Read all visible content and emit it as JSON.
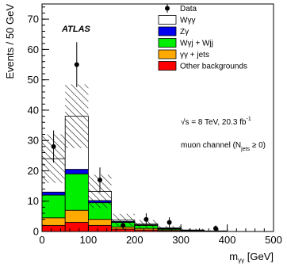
{
  "chart_data": {
    "type": "bar",
    "stacked": true,
    "x_edges": [
      0,
      50,
      100,
      150,
      200,
      250,
      300,
      350,
      400,
      450,
      500
    ],
    "xlim": [
      0,
      500
    ],
    "ylim": [
      0,
      75
    ],
    "xlabel_main": "m",
    "xlabel_sub": "γγ",
    "xlabel_unit": " [GeV]",
    "ylabel": "Events / 50 GeV",
    "x_ticks": [
      0,
      100,
      200,
      300,
      400,
      500
    ],
    "y_ticks": [
      0,
      10,
      20,
      30,
      40,
      50,
      60,
      70
    ],
    "series": [
      {
        "key": "other",
        "name": "Other backgrounds",
        "color": "#ff0000",
        "values": [
          2.0,
          3.0,
          2.0,
          0.8,
          0.5,
          0.3,
          0.1,
          0.1,
          0.0,
          0.0
        ]
      },
      {
        "key": "gg",
        "name": "γγ + jets",
        "color": "#ffaa00",
        "values": [
          2.5,
          4.0,
          2.0,
          0.7,
          0.5,
          0.3,
          0.1,
          0.0,
          0.0,
          0.0
        ]
      },
      {
        "key": "wgj",
        "name": "Wγj + Wjj",
        "color": "#00ee00",
        "values": [
          7.5,
          12.0,
          5.5,
          1.5,
          1.0,
          0.3,
          0.2,
          0.1,
          0.0,
          0.0
        ]
      },
      {
        "key": "zg",
        "name": "Zγ",
        "color": "#0000ee",
        "values": [
          1.0,
          1.5,
          0.7,
          0.3,
          0.2,
          0.1,
          0.0,
          0.0,
          0.0,
          0.0
        ]
      },
      {
        "key": "wgg",
        "name": "Wγγ",
        "color": "#ffffff",
        "values": [
          11.0,
          17.5,
          3.0,
          0.5,
          0.3,
          0.2,
          0.1,
          0.0,
          0.0,
          0.0
        ]
      }
    ],
    "uncertainty": [
      8.0,
      10.5,
      5.5,
      2.0,
      1.3,
      0.6,
      0.4,
      0.2,
      0.0,
      0.0
    ],
    "data_points": [
      {
        "x": 25,
        "y": 28,
        "err": 5.3
      },
      {
        "x": 75,
        "y": 55,
        "err": 7.4
      },
      {
        "x": 125,
        "y": 17,
        "err": 4.1
      },
      {
        "x": 175,
        "y": 2,
        "err": 1.4
      },
      {
        "x": 225,
        "y": 4,
        "err": 2.0
      },
      {
        "x": 275,
        "y": 3,
        "err": 1.7
      },
      {
        "x": 375,
        "y": 1,
        "err": 1.0
      }
    ],
    "legend": {
      "data_label": "Data",
      "placement": "top-right",
      "order": [
        "wgg",
        "zg",
        "wgj",
        "gg",
        "other"
      ]
    },
    "annotations": {
      "experiment": "ATLAS",
      "energy_prefix": "√s = 8 TeV, 20.3 fb",
      "energy_sup": "-1",
      "channel_prefix": "muon channel (N",
      "channel_sub": "jets",
      "channel_suffix": " ≥ 0)"
    }
  }
}
